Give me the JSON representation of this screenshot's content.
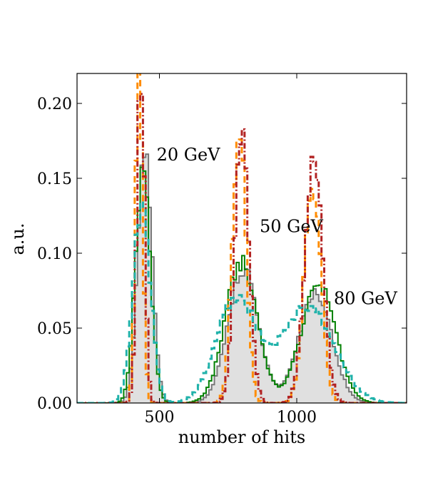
{
  "chart_data": {
    "type": "histogram",
    "title": "",
    "xlabel": "number of hits",
    "ylabel": "a.u.",
    "xlim": [
      200,
      1400
    ],
    "ylim": [
      0,
      0.22
    ],
    "xticks": [
      500,
      1000
    ],
    "xtick_labels": [
      "500",
      "1000"
    ],
    "yticks": [
      0.0,
      0.05,
      0.1,
      0.15,
      0.2
    ],
    "ytick_labels": [
      "0.00",
      "0.05",
      "0.10",
      "0.15",
      "0.20"
    ],
    "annotations": [
      {
        "text": "20 GeV",
        "x": 490,
        "y": 0.162
      },
      {
        "text": "50 GeV",
        "x": 865,
        "y": 0.114
      },
      {
        "text": "80 GeV",
        "x": 1135,
        "y": 0.066
      }
    ],
    "series": [
      {
        "name": "gray-filled",
        "color": "#777777",
        "fill": "#e0e0e0",
        "style": "solid",
        "peaks": [
          {
            "mu": 447,
            "sigma": 26,
            "amp": 0.17
          },
          {
            "mu": 805,
            "sigma": 55,
            "amp": 0.09
          },
          {
            "mu": 1068,
            "sigma": 60,
            "amp": 0.073
          }
        ]
      },
      {
        "name": "green",
        "color": "#008000",
        "style": "solid",
        "peaks": [
          {
            "mu": 440,
            "sigma": 27,
            "amp": 0.158
          },
          {
            "mu": 798,
            "sigma": 58,
            "amp": 0.094
          },
          {
            "mu": 1078,
            "sigma": 62,
            "amp": 0.08
          }
        ]
      },
      {
        "name": "orange",
        "color": "#ff8c00",
        "style": "dashed",
        "peaks": [
          {
            "mu": 426,
            "sigma": 13,
            "amp": 0.22
          },
          {
            "mu": 790,
            "sigma": 24,
            "amp": 0.188
          },
          {
            "mu": 1058,
            "sigma": 30,
            "amp": 0.148
          }
        ]
      },
      {
        "name": "red",
        "color": "#b22222",
        "style": "dashdot",
        "peaks": [
          {
            "mu": 432,
            "sigma": 14,
            "amp": 0.22
          },
          {
            "mu": 800,
            "sigma": 26,
            "amp": 0.18
          },
          {
            "mu": 1062,
            "sigma": 32,
            "amp": 0.165
          }
        ]
      },
      {
        "name": "teal",
        "color": "#20b2aa",
        "style": "dashed",
        "peaks": [
          {
            "mu": 435,
            "sigma": 32,
            "amp": 0.13
          },
          {
            "mu": 780,
            "sigma": 72,
            "amp": 0.07
          },
          {
            "mu": 1040,
            "sigma": 95,
            "amp": 0.065
          }
        ]
      }
    ]
  }
}
